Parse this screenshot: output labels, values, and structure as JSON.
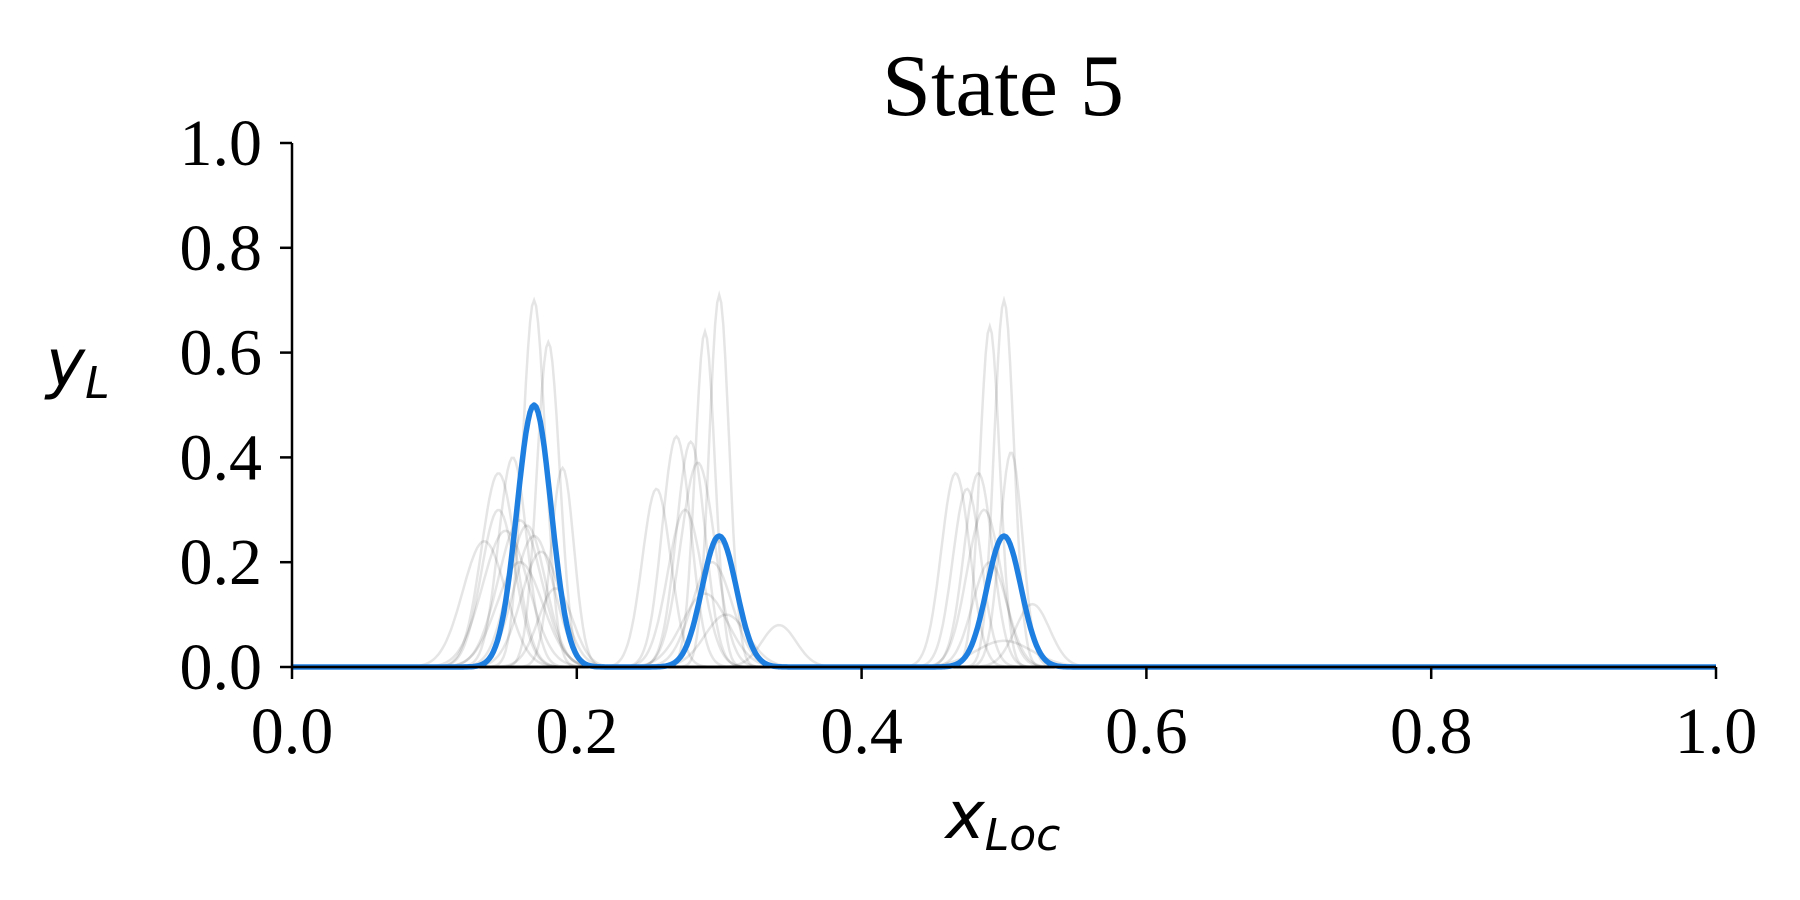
{
  "chart_data": {
    "type": "line",
    "title": "State 5",
    "xlabel": {
      "base": "x",
      "subscript": "Loc"
    },
    "ylabel": {
      "base": "y",
      "subscript": "L"
    },
    "xlim": [
      0,
      1
    ],
    "ylim": [
      0,
      1
    ],
    "x_ticks": [
      "0.0",
      "0.2",
      "0.4",
      "0.6",
      "0.8",
      "1.0"
    ],
    "y_ticks": [
      "0.0",
      "0.2",
      "0.4",
      "0.6",
      "0.8",
      "1.0"
    ],
    "grid": false,
    "legend": "none",
    "colors": {
      "main": "#1f7fe0",
      "samples": "#000000"
    },
    "series": [
      {
        "style": "main",
        "peaks": [
          {
            "center": 0.17,
            "height": 0.5,
            "sigma": 0.012
          },
          {
            "center": 0.3,
            "height": 0.25,
            "sigma": 0.012
          },
          {
            "center": 0.5,
            "height": 0.25,
            "sigma": 0.012
          }
        ]
      }
    ],
    "sample_curves": [
      {
        "center": 0.17,
        "height": 0.7,
        "sigma": 0.008
      },
      {
        "center": 0.18,
        "height": 0.62,
        "sigma": 0.008
      },
      {
        "center": 0.145,
        "height": 0.37,
        "sigma": 0.012
      },
      {
        "center": 0.155,
        "height": 0.4,
        "sigma": 0.01
      },
      {
        "center": 0.19,
        "height": 0.38,
        "sigma": 0.008
      },
      {
        "center": 0.135,
        "height": 0.24,
        "sigma": 0.015
      },
      {
        "center": 0.16,
        "height": 0.28,
        "sigma": 0.015
      },
      {
        "center": 0.165,
        "height": 0.27,
        "sigma": 0.013
      },
      {
        "center": 0.15,
        "height": 0.26,
        "sigma": 0.016
      },
      {
        "center": 0.17,
        "height": 0.25,
        "sigma": 0.014
      },
      {
        "center": 0.175,
        "height": 0.22,
        "sigma": 0.014
      },
      {
        "center": 0.16,
        "height": 0.2,
        "sigma": 0.016
      },
      {
        "center": 0.145,
        "height": 0.3,
        "sigma": 0.012
      },
      {
        "center": 0.185,
        "height": 0.15,
        "sigma": 0.012
      },
      {
        "center": 0.3,
        "height": 0.71,
        "sigma": 0.007
      },
      {
        "center": 0.29,
        "height": 0.64,
        "sigma": 0.007
      },
      {
        "center": 0.27,
        "height": 0.44,
        "sigma": 0.01
      },
      {
        "center": 0.28,
        "height": 0.43,
        "sigma": 0.01
      },
      {
        "center": 0.285,
        "height": 0.39,
        "sigma": 0.012
      },
      {
        "center": 0.256,
        "height": 0.34,
        "sigma": 0.01
      },
      {
        "center": 0.276,
        "height": 0.3,
        "sigma": 0.012
      },
      {
        "center": 0.3,
        "height": 0.24,
        "sigma": 0.012
      },
      {
        "center": 0.295,
        "height": 0.2,
        "sigma": 0.014
      },
      {
        "center": 0.29,
        "height": 0.14,
        "sigma": 0.016
      },
      {
        "center": 0.305,
        "height": 0.1,
        "sigma": 0.015
      },
      {
        "center": 0.342,
        "height": 0.08,
        "sigma": 0.012
      },
      {
        "center": 0.5,
        "height": 0.7,
        "sigma": 0.007
      },
      {
        "center": 0.49,
        "height": 0.65,
        "sigma": 0.007
      },
      {
        "center": 0.505,
        "height": 0.41,
        "sigma": 0.008
      },
      {
        "center": 0.466,
        "height": 0.37,
        "sigma": 0.01
      },
      {
        "center": 0.482,
        "height": 0.37,
        "sigma": 0.01
      },
      {
        "center": 0.474,
        "height": 0.34,
        "sigma": 0.01
      },
      {
        "center": 0.486,
        "height": 0.3,
        "sigma": 0.012
      },
      {
        "center": 0.49,
        "height": 0.2,
        "sigma": 0.012
      },
      {
        "center": 0.52,
        "height": 0.12,
        "sigma": 0.012
      },
      {
        "center": 0.5,
        "height": 0.05,
        "sigma": 0.02
      }
    ]
  }
}
